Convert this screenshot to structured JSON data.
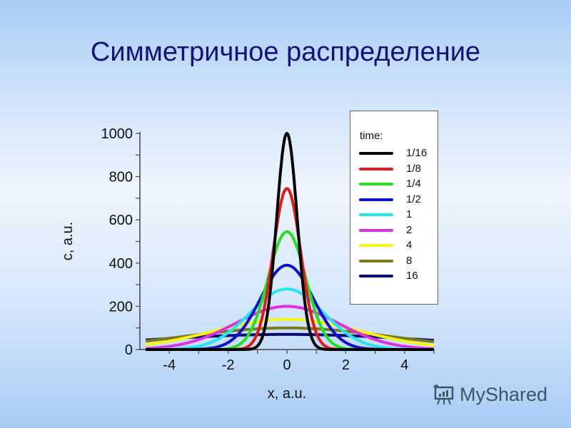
{
  "slide": {
    "title": "Симметричное распределение"
  },
  "watermark": {
    "text": "MyShared",
    "icon": "presentation-board-icon"
  },
  "legend": {
    "title": "time:"
  },
  "chart_data": {
    "type": "line",
    "title": "Симметричное распределение",
    "xlabel": "x, a.u.",
    "ylabel": "c, a.u.",
    "xlim": [
      -4.8,
      5
    ],
    "ylim": [
      0,
      1000
    ],
    "x_ticks": [
      -4,
      -2,
      0,
      2,
      4
    ],
    "y_ticks": [
      0,
      200,
      400,
      600,
      800,
      1000
    ],
    "grid": false,
    "legend_position": "upper right",
    "legend_title": "time:",
    "series": [
      {
        "name": "1/16",
        "color": "#000000",
        "peak": 1000
      },
      {
        "name": "1/8",
        "color": "#e31a1a",
        "peak": 745
      },
      {
        "name": "1/4",
        "color": "#22e022",
        "peak": 545
      },
      {
        "name": "1/2",
        "color": "#1010c8",
        "peak": 390
      },
      {
        "name": "1",
        "color": "#22e6ee",
        "peak": 280
      },
      {
        "name": "2",
        "color": "#e02ee0",
        "peak": 200
      },
      {
        "name": "4",
        "color": "#f5f51a",
        "peak": 140
      },
      {
        "name": "8",
        "color": "#7a7a18",
        "peak": 100
      },
      {
        "name": "16",
        "color": "#0a0a78",
        "peak": 70
      }
    ],
    "curve_shape": "gaussian centered at x=0, constant area"
  }
}
